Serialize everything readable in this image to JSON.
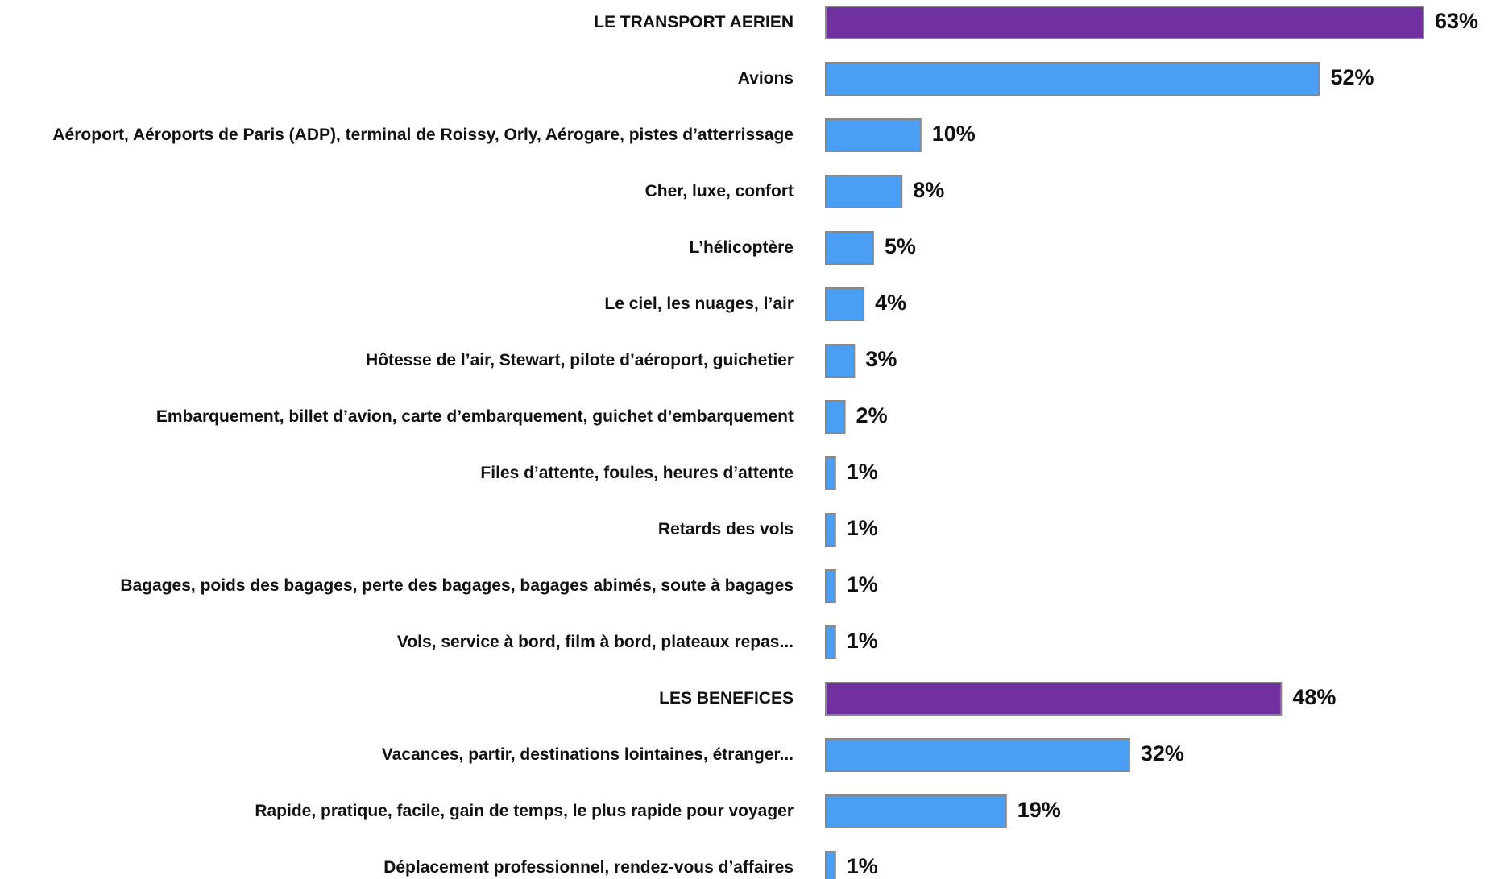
{
  "chart_data": {
    "type": "barh",
    "categories": [
      "LE TRANSPORT AERIEN",
      "Avions",
      "Aéroport, Aéroports de Paris (ADP), terminal de Roissy, Orly, Aérogare, pistes d’atterrissage",
      "Cher, luxe, confort",
      "L’hélicoptère",
      "Le ciel, les nuages, l’air",
      "Hôtesse de l’air, Stewart, pilote d’aéroport, guichetier",
      "Embarquement, billet d’avion, carte d’embarquement, guichet d’embarquement",
      "Files d’attente, foules, heures d’attente",
      "Retards des vols",
      "Bagages, poids des bagages, perte des bagages, bagages abimés, soute à bagages",
      "Vols, service à bord, film à bord, plateaux repas...",
      "LES BENEFICES",
      "Vacances, partir, destinations lointaines, étranger...",
      "Rapide, pratique, facile, gain de temps, le plus rapide pour voyager",
      "Déplacement professionnel, rendez-vous d’affaires"
    ],
    "values": [
      63,
      52,
      10,
      8,
      5,
      4,
      3,
      2,
      1,
      1,
      1,
      1,
      48,
      32,
      19,
      1
    ],
    "value_labels": [
      "63%",
      "52%",
      "10%",
      "8%",
      "5%",
      "4%",
      "3%",
      "2%",
      "1%",
      "1%",
      "1%",
      "1%",
      "48%",
      "32%",
      "19%",
      "1%"
    ],
    "colors": [
      "#7030a0",
      "#4a9ff5",
      "#4a9ff5",
      "#4a9ff5",
      "#4a9ff5",
      "#4a9ff5",
      "#4a9ff5",
      "#4a9ff5",
      "#4a9ff5",
      "#4a9ff5",
      "#4a9ff5",
      "#4a9ff5",
      "#7030a0",
      "#4a9ff5",
      "#4a9ff5",
      "#4a9ff5"
    ]
  }
}
